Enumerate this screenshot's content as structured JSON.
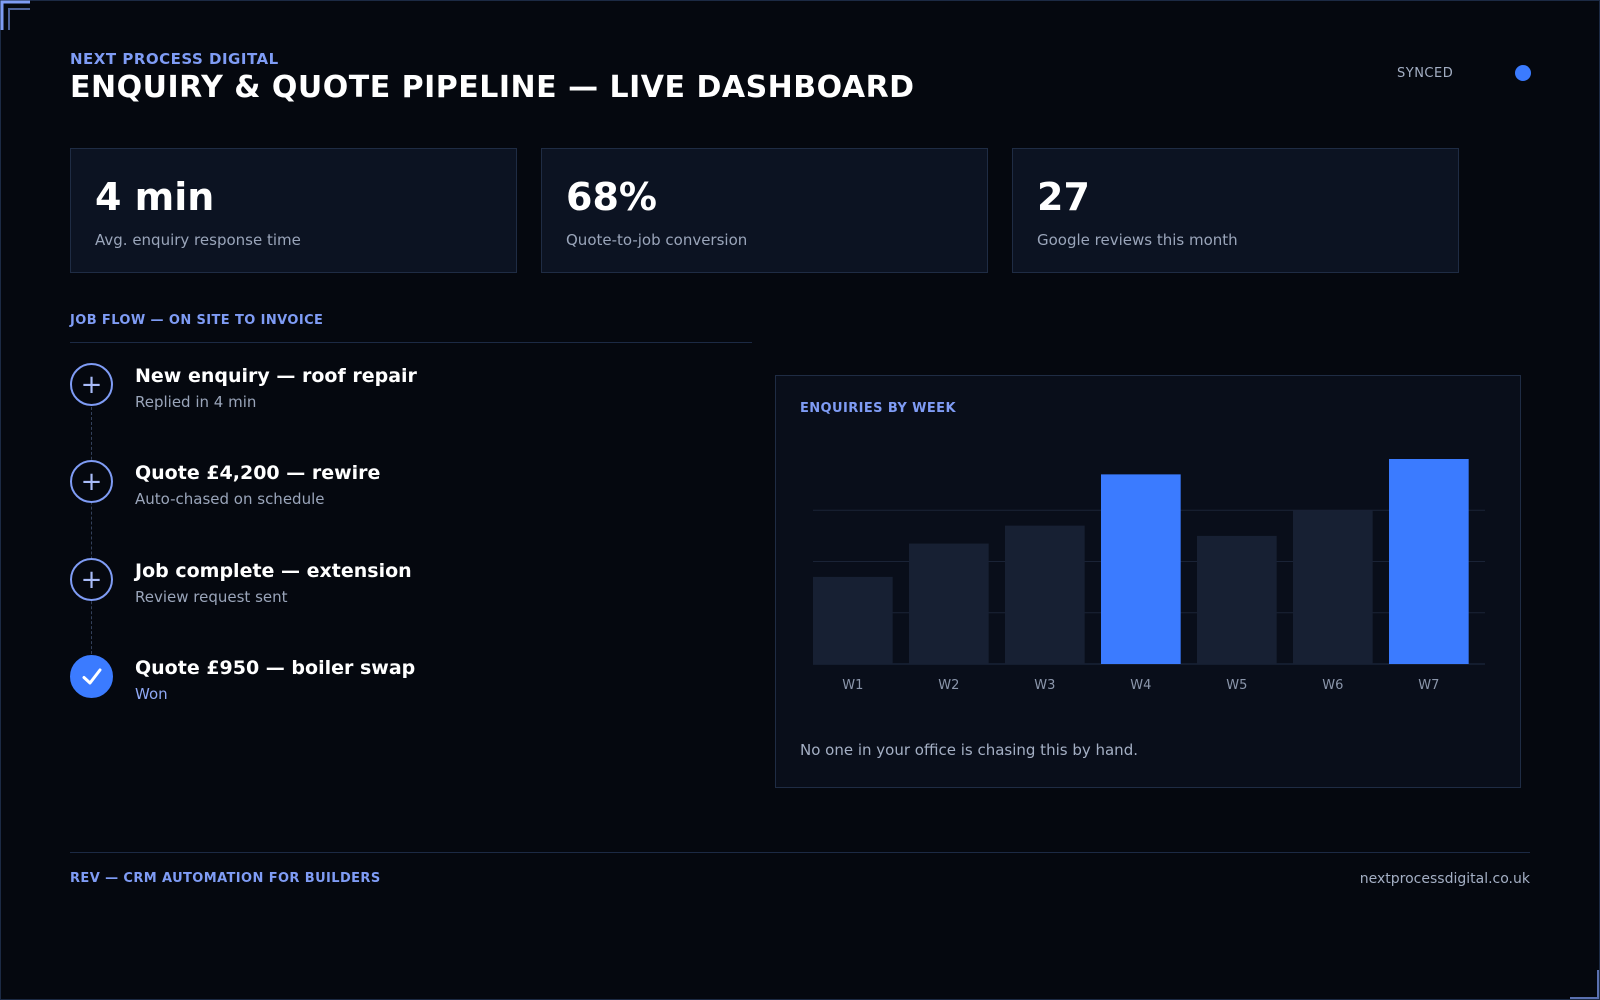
{
  "header": {
    "brand": "NEXT PROCESS DIGITAL",
    "title": "ENQUIRY & QUOTE PIPELINE — LIVE DASHBOARD",
    "status_label": "SYNCED",
    "status_color": "#3b7bff"
  },
  "kpis": [
    {
      "value": "4 min",
      "label": "Avg. enquiry response time"
    },
    {
      "value": "68%",
      "label": "Quote-to-job conversion"
    },
    {
      "value": "27",
      "label": "Google reviews this month"
    }
  ],
  "job_flow": {
    "heading": "JOB FLOW — ON SITE TO INVOICE",
    "items": [
      {
        "title": "New enquiry — roof repair",
        "subtitle": "Replied in 4 min",
        "icon": "plus-icon",
        "done": false
      },
      {
        "title": "Quote £4,200 — rewire",
        "subtitle": "Auto-chased on schedule",
        "icon": "plus-icon",
        "done": false
      },
      {
        "title": "Job complete — extension",
        "subtitle": "Review request sent",
        "icon": "plus-icon",
        "done": false
      },
      {
        "title": "Quote £950 — boiler swap",
        "subtitle": "Won",
        "icon": "check-icon",
        "done": true
      }
    ]
  },
  "chart_panel": {
    "note": "No one in your office is chasing this by hand."
  },
  "chart_data": {
    "type": "bar",
    "title": "ENQUIRIES BY WEEK",
    "categories": [
      "W1",
      "W2",
      "W3",
      "W4",
      "W5",
      "W6",
      "W7"
    ],
    "values": [
      17,
      23.5,
      27,
      37,
      25,
      30,
      40
    ],
    "highlighted": [
      "W4",
      "W7"
    ],
    "ylim": [
      0,
      40
    ],
    "grid": true,
    "bar_color": "#172033",
    "highlight_color": "#3b7bff"
  },
  "footer": {
    "tagline": "REV — CRM AUTOMATION FOR BUILDERS",
    "website": "nextprocessdigital.co.uk"
  }
}
